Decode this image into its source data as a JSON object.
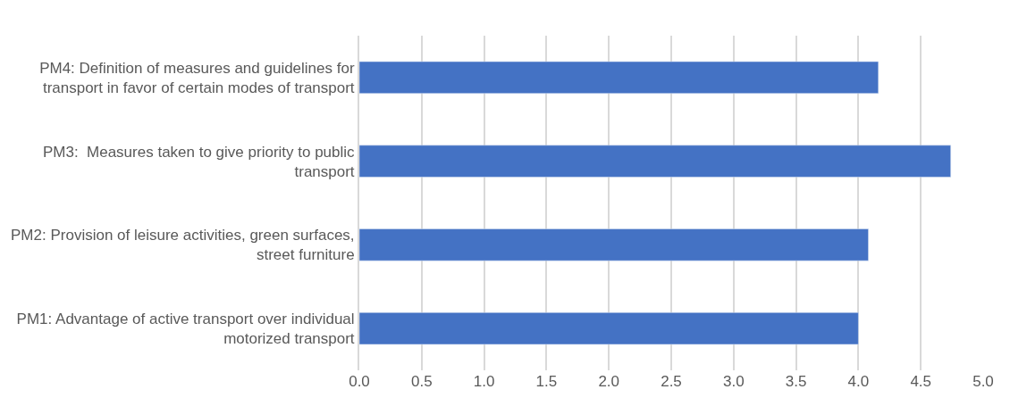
{
  "chart_data": {
    "type": "bar",
    "orientation": "horizontal",
    "categories": [
      "PM4: Definition of measures and guidelines for transport in favor of certain modes of transport",
      "PM3:  Measures taken to give priority to public transport",
      "PM2: Provision of leisure activities, green surfaces, street furniture",
      "PM1: Advantage of active transport over individual motorized transport"
    ],
    "values": [
      4.16,
      4.74,
      4.08,
      4.0
    ],
    "color": "#4472c4",
    "xlim": [
      0,
      5.0
    ],
    "xticks": [
      {
        "value": 0,
        "label": "0.0"
      },
      {
        "value": 0.5,
        "label": "0.5"
      },
      {
        "value": 1,
        "label": "1.0"
      },
      {
        "value": 1.5,
        "label": "1.5"
      },
      {
        "value": 2,
        "label": "2.0"
      },
      {
        "value": 2.5,
        "label": "2.5"
      },
      {
        "value": 3,
        "label": "3.0"
      },
      {
        "value": 3.5,
        "label": "3.5"
      },
      {
        "value": 4,
        "label": "4.0"
      },
      {
        "value": 4.5,
        "label": "4.5"
      },
      {
        "value": 5,
        "label": "5.0"
      }
    ],
    "grid": "x"
  }
}
